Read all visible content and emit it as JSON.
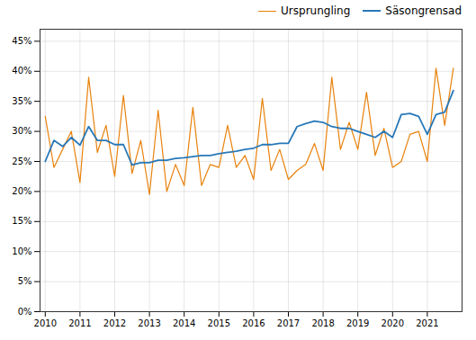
{
  "chart_data": {
    "type": "line",
    "x": [
      2010,
      2010.25,
      2010.5,
      2010.75,
      2011,
      2011.25,
      2011.5,
      2011.75,
      2012,
      2012.25,
      2012.5,
      2012.75,
      2013,
      2013.25,
      2013.5,
      2013.75,
      2014,
      2014.25,
      2014.5,
      2014.75,
      2015,
      2015.25,
      2015.5,
      2015.75,
      2016,
      2016.25,
      2016.5,
      2016.75,
      2017,
      2017.25,
      2017.5,
      2017.75,
      2018,
      2018.25,
      2018.5,
      2018.75,
      2019,
      2019.25,
      2019.5,
      2019.75,
      2020,
      2020.25,
      2020.5,
      2020.75,
      2021,
      2021.25,
      2021.5,
      2021.75
    ],
    "series": [
      {
        "name": "Ursprungling",
        "color": "#E8820C",
        "values": [
          0.325,
          0.24,
          0.27,
          0.3,
          0.215,
          0.39,
          0.265,
          0.31,
          0.225,
          0.36,
          0.23,
          0.285,
          0.195,
          0.335,
          0.2,
          0.245,
          0.21,
          0.34,
          0.21,
          0.245,
          0.24,
          0.31,
          0.24,
          0.26,
          0.22,
          0.355,
          0.235,
          0.27,
          0.22,
          0.235,
          0.245,
          0.28,
          0.235,
          0.39,
          0.27,
          0.315,
          0.27,
          0.365,
          0.26,
          0.305,
          0.24,
          0.25,
          0.295,
          0.3,
          0.25,
          0.405,
          0.31,
          0.405
        ]
      },
      {
        "name": "Säsongrensad",
        "color": "#2878B8",
        "values": [
          0.25,
          0.285,
          0.275,
          0.29,
          0.277,
          0.308,
          0.285,
          0.285,
          0.278,
          0.278,
          0.244,
          0.248,
          0.248,
          0.252,
          0.252,
          0.255,
          0.256,
          0.258,
          0.26,
          0.26,
          0.263,
          0.265,
          0.267,
          0.27,
          0.272,
          0.278,
          0.278,
          0.28,
          0.28,
          0.308,
          0.313,
          0.317,
          0.315,
          0.308,
          0.305,
          0.305,
          0.3,
          0.295,
          0.29,
          0.3,
          0.29,
          0.328,
          0.33,
          0.325,
          0.295,
          0.328,
          0.332,
          0.368
        ]
      }
    ],
    "xlim": [
      2009.85,
      2022.0
    ],
    "xticks": [
      2010,
      2011,
      2012,
      2013,
      2014,
      2015,
      2016,
      2017,
      2018,
      2019,
      2020,
      2021
    ],
    "ylim": [
      0.0,
      0.47
    ],
    "yticks": [
      {
        "value": 0.0,
        "label": "0%"
      },
      {
        "value": 0.05,
        "label": "5%"
      },
      {
        "value": 0.1,
        "label": "10%"
      },
      {
        "value": 0.15,
        "label": "15%"
      },
      {
        "value": 0.2,
        "label": "20%"
      },
      {
        "value": 0.25,
        "label": "25%"
      },
      {
        "value": 0.3,
        "label": "30%"
      },
      {
        "value": 0.35,
        "label": "35%"
      },
      {
        "value": 0.4,
        "label": "40%"
      },
      {
        "value": 0.45,
        "label": "45%"
      }
    ],
    "grid": true,
    "legend": "upper right"
  }
}
